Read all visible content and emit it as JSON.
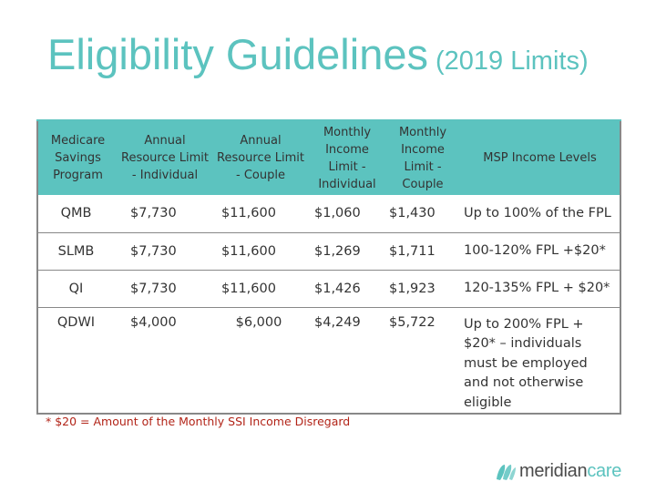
{
  "title": {
    "main": "Eligibility Guidelines",
    "sub": "(2019 Limits)"
  },
  "table": {
    "headers": [
      "Medicare Savings Program",
      "Annual Resource Limit - Individual",
      "Annual Resource Limit - Couple",
      "Monthly Income Limit - Individual",
      "Monthly Income Limit - Couple",
      "MSP Income Levels"
    ],
    "rows": [
      {
        "program": "QMB",
        "res_ind": "$7,730",
        "res_couple": "$11,600",
        "inc_ind": "$1,060",
        "inc_couple": "$1,430",
        "msp": "Up to 100% of the FPL"
      },
      {
        "program": "SLMB",
        "res_ind": "$7,730",
        "res_couple": "$11,600",
        "inc_ind": "$1,269",
        "inc_couple": "$1,711",
        "msp": "100-120% FPL +$20*"
      },
      {
        "program": "QI",
        "res_ind": "$7,730",
        "res_couple": "$11,600",
        "inc_ind": "$1,426",
        "inc_couple": "$1,923",
        "msp": "120-135% FPL + $20*"
      },
      {
        "program": "QDWI",
        "res_ind": "$4,000",
        "res_couple": "$6,000",
        "inc_ind": "$4,249",
        "inc_couple": "$5,722",
        "msp": "Up to 200% FPL + $20* – individuals must be employed and not otherwise  eligible"
      }
    ]
  },
  "footnote": "* $20 = Amount of the Monthly SSI Income Disregard",
  "logo": {
    "part1": "meridian",
    "part2": "care",
    "mark": "."
  },
  "colors": {
    "accent": "#5cc3bf",
    "footnote": "#b22418",
    "text": "#333333",
    "border": "#888888"
  },
  "icons": {
    "logo_mark": "meridian-wave-logo-icon"
  }
}
